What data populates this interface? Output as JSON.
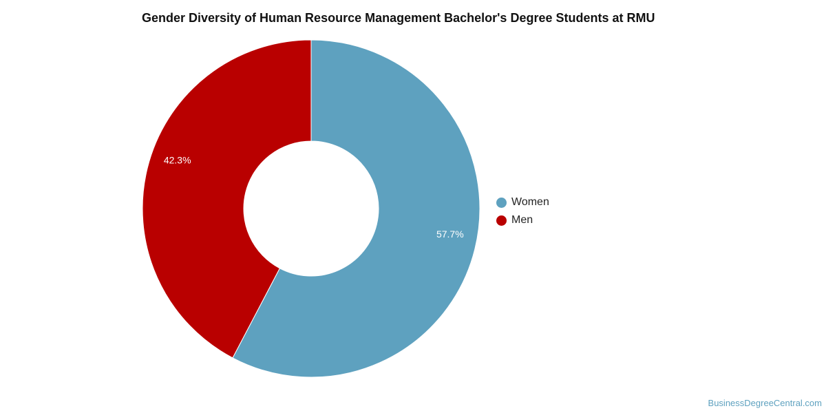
{
  "chart_data": {
    "type": "pie",
    "variant": "donut",
    "title": "Gender Diversity of Human Resource Management Bachelor's Degree Students at RMU",
    "slices": [
      {
        "name": "Women",
        "value": 57.7,
        "label": "57.7%",
        "color": "#5ea1bf"
      },
      {
        "name": "Men",
        "value": 42.3,
        "label": "42.3%",
        "color": "#b90000"
      }
    ],
    "legend": {
      "placement": "right",
      "items": [
        "Women",
        "Men"
      ]
    }
  },
  "watermark": "BusinessDegreeCentral.com"
}
